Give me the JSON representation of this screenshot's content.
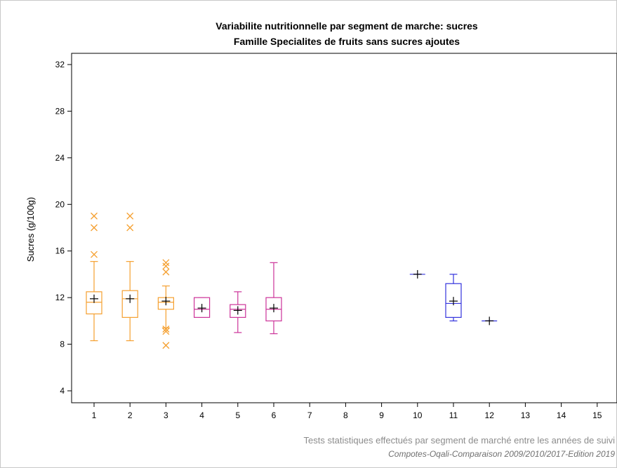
{
  "chart_data": {
    "type": "box",
    "title": "Variabilite nutritionnelle par segment de marche: sucres",
    "subtitle": "Famille Specialites de fruits sans sucres ajoutes",
    "xlabel": "",
    "ylabel": "Sucres (g/100g)",
    "ylim": [
      3,
      33
    ],
    "yticks": [
      4,
      8,
      12,
      16,
      20,
      24,
      28,
      32
    ],
    "categories": [
      "1",
      "2",
      "3",
      "4",
      "5",
      "6",
      "7",
      "8",
      "9",
      "10",
      "11",
      "12",
      "13",
      "14",
      "15"
    ],
    "grid": false,
    "boxes": [
      {
        "x": "1",
        "color": "#f5a030",
        "whisker_low": 8.3,
        "q1": 10.6,
        "median": 11.6,
        "q3": 12.5,
        "whisker_high": 15.1,
        "mean": 11.9,
        "outliers": [
          15.7,
          18.0,
          19.0
        ]
      },
      {
        "x": "2",
        "color": "#f5a030",
        "whisker_low": 8.3,
        "q1": 10.3,
        "median": 11.9,
        "q3": 12.6,
        "whisker_high": 15.1,
        "mean": 11.9,
        "outliers": [
          18.0,
          19.0
        ]
      },
      {
        "x": "3",
        "color": "#f5a030",
        "whisker_low": 9.4,
        "q1": 11.0,
        "median": 11.6,
        "q3": 12.0,
        "whisker_high": 13.0,
        "mean": 11.7,
        "outliers": [
          7.9,
          9.1,
          9.3,
          14.2,
          14.7,
          15.0
        ]
      },
      {
        "x": "4",
        "color": "#cc3399",
        "whisker_low": 10.3,
        "q1": 10.3,
        "median": 11.0,
        "q3": 12.0,
        "whisker_high": 12.0,
        "mean": 11.1,
        "outliers": []
      },
      {
        "x": "5",
        "color": "#cc3399",
        "whisker_low": 9.0,
        "q1": 10.3,
        "median": 11.0,
        "q3": 11.4,
        "whisker_high": 12.5,
        "mean": 10.9,
        "outliers": []
      },
      {
        "x": "6",
        "color": "#cc3399",
        "whisker_low": 8.9,
        "q1": 10.0,
        "median": 11.0,
        "q3": 12.0,
        "whisker_high": 15.0,
        "mean": 11.1,
        "outliers": []
      },
      {
        "x": "10",
        "color": "#3333dd",
        "whisker_low": 14.0,
        "q1": 14.0,
        "median": 14.0,
        "q3": 14.0,
        "whisker_high": 14.0,
        "mean": 14.0,
        "outliers": []
      },
      {
        "x": "11",
        "color": "#3333dd",
        "whisker_low": 10.0,
        "q1": 10.3,
        "median": 11.5,
        "q3": 13.2,
        "whisker_high": 14.0,
        "mean": 11.7,
        "outliers": []
      },
      {
        "x": "12",
        "color": "#3333dd",
        "whisker_low": 10.0,
        "q1": 10.0,
        "median": 10.0,
        "q3": 10.0,
        "whisker_high": 10.0,
        "mean": 10.0,
        "outliers": []
      }
    ]
  },
  "footnotes": {
    "line1": "Tests statistiques effectués par segment de marché entre les années de suivi",
    "line2": "Compotes-Oqali-Comparaison 2009/2010/2017-Edition 2019"
  }
}
